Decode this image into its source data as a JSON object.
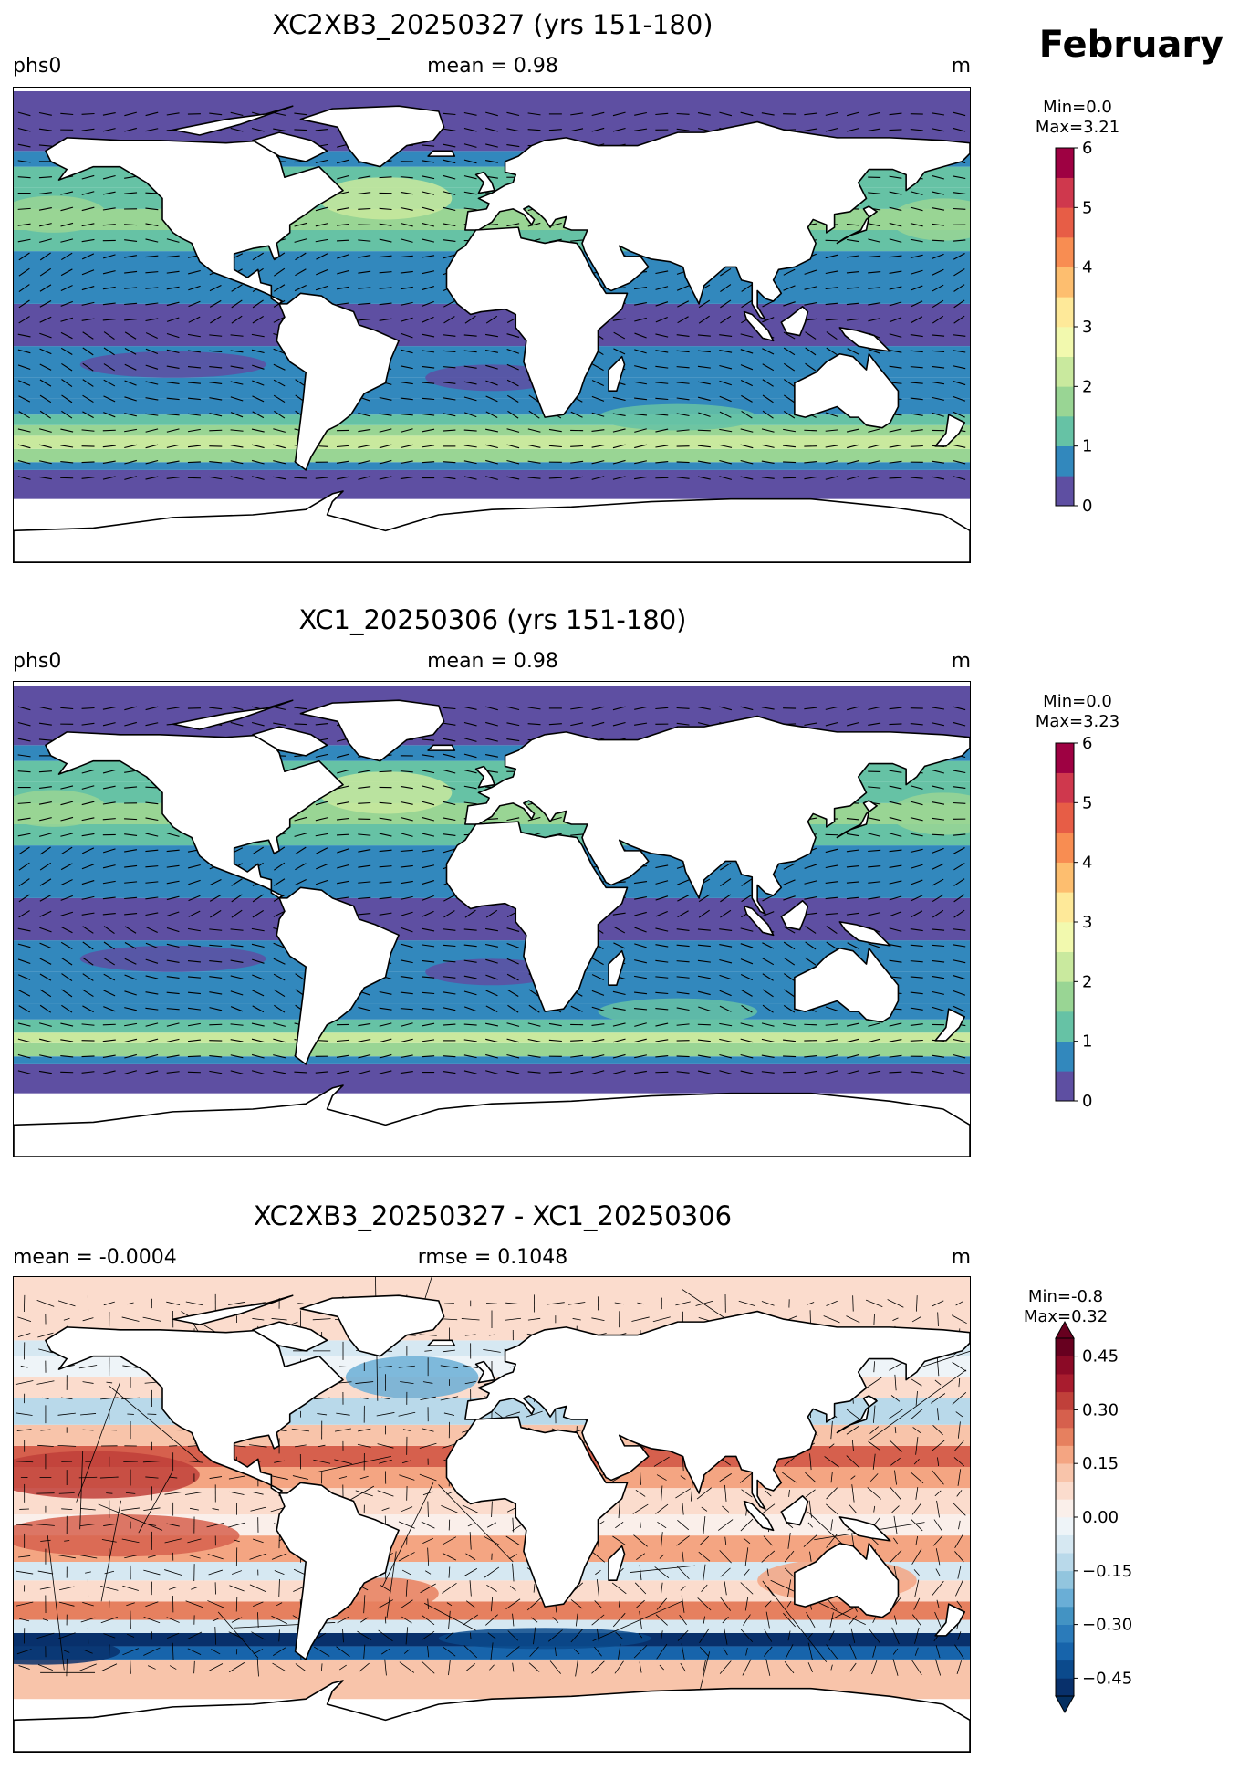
{
  "figure": {
    "month": "February"
  },
  "chart_data": [
    {
      "type": "heatmap",
      "title": "XC2XB3_20250327 (yrs 151-180)",
      "left_label": "phs0",
      "center_label": "mean = 0.98",
      "units": "m",
      "min_label": "Min=0.0",
      "max_label": "Max=3.21",
      "min": 0.0,
      "max": 3.21,
      "mean": 0.98,
      "colorbar": {
        "vmin": 0,
        "vmax": 6,
        "ticks": [
          "0",
          "1",
          "2",
          "3",
          "4",
          "5",
          "6"
        ],
        "levels": 12,
        "colors": [
          "#5e4fa2",
          "#3288bd",
          "#66c2a5",
          "#99d594",
          "#c9e99e",
          "#f2f9ae",
          "#fee999",
          "#fdbe6f",
          "#f88d52",
          "#e75d46",
          "#cf384d",
          "#9e0142"
        ]
      },
      "overlay": "wave direction arrows"
    },
    {
      "type": "heatmap",
      "title": "XC1_20250306 (yrs 151-180)",
      "left_label": "phs0",
      "center_label": "mean = 0.98",
      "units": "m",
      "min_label": "Min=0.0",
      "max_label": "Max=3.23",
      "min": 0.0,
      "max": 3.23,
      "mean": 0.98,
      "colorbar": {
        "vmin": 0,
        "vmax": 6,
        "ticks": [
          "0",
          "1",
          "2",
          "3",
          "4",
          "5",
          "6"
        ],
        "levels": 12,
        "colors": [
          "#5e4fa2",
          "#3288bd",
          "#66c2a5",
          "#99d594",
          "#c9e99e",
          "#f2f9ae",
          "#fee999",
          "#fdbe6f",
          "#f88d52",
          "#e75d46",
          "#cf384d",
          "#9e0142"
        ]
      },
      "overlay": "wave direction arrows"
    },
    {
      "type": "heatmap",
      "title": "XC2XB3_20250327 - XC1_20250306",
      "left_label": "mean = -0.0004",
      "center_label": "rmse = 0.1048",
      "units": "m",
      "min_label": "Min=-0.8",
      "max_label": "Max=0.32",
      "min": -0.8,
      "max": 0.32,
      "mean": -0.0004,
      "rmse": 0.1048,
      "colorbar": {
        "vmin": -0.5,
        "vmax": 0.5,
        "ticks": [
          "−0.45",
          "−0.30",
          "−0.15",
          "0.00",
          "0.15",
          "0.30",
          "0.45"
        ],
        "tick_values": [
          -0.45,
          -0.3,
          -0.15,
          0.0,
          0.15,
          0.3,
          0.45
        ],
        "levels": 20,
        "extend": "both",
        "colors": [
          "#08306b",
          "#0b4a8c",
          "#1764ab",
          "#2b7bba",
          "#4393c3",
          "#6aaed6",
          "#92c5de",
          "#b9d9ea",
          "#d6e8f2",
          "#eef4f8",
          "#faefea",
          "#fbdccd",
          "#f8c4aa",
          "#f4a582",
          "#e6805f",
          "#d6604d",
          "#c0403a",
          "#a81c2e",
          "#8b0a26",
          "#67001f"
        ],
        "extend_low_color": "#053061",
        "extend_high_color": "#67001f"
      },
      "overlay": "difference arrows"
    }
  ]
}
